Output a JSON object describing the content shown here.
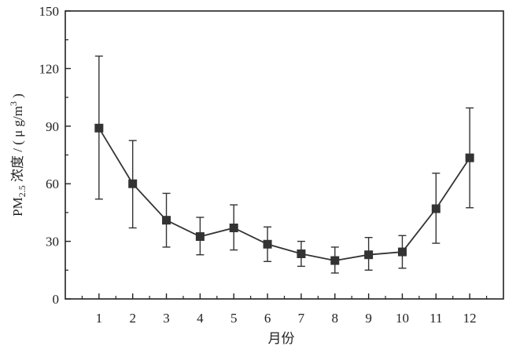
{
  "chart_data": {
    "type": "line",
    "title": "",
    "xlabel": "月份",
    "ylabel": {
      "prefix": "PM",
      "subscript": "2.5",
      "rest": " 浓度 / ( μ g/m",
      "superscript": "3",
      "suffix": " )"
    },
    "x": [
      1,
      2,
      3,
      4,
      5,
      6,
      7,
      8,
      9,
      10,
      11,
      12
    ],
    "xticks": [
      "1",
      "2",
      "3",
      "4",
      "5",
      "6",
      "7",
      "8",
      "9",
      "10",
      "11",
      "12"
    ],
    "xlim": [
      0,
      13
    ],
    "ylim": [
      0,
      150
    ],
    "yticks": [
      "0",
      "30",
      "60",
      "90",
      "120",
      "150"
    ],
    "series": [
      {
        "values": [
          89,
          60,
          41,
          32.5,
          37,
          28.5,
          23.5,
          20,
          23,
          24.5,
          47,
          73.5
        ],
        "err_low": [
          52,
          37,
          27,
          23,
          25.5,
          19.5,
          17,
          13.5,
          15,
          16,
          29,
          47.5
        ],
        "err_high": [
          126.5,
          82.5,
          55,
          42.5,
          49,
          37.5,
          30,
          27,
          32,
          33,
          65.5,
          99.5
        ],
        "marker": "square",
        "color": "#333333"
      }
    ],
    "grid": false,
    "legend": "none"
  }
}
